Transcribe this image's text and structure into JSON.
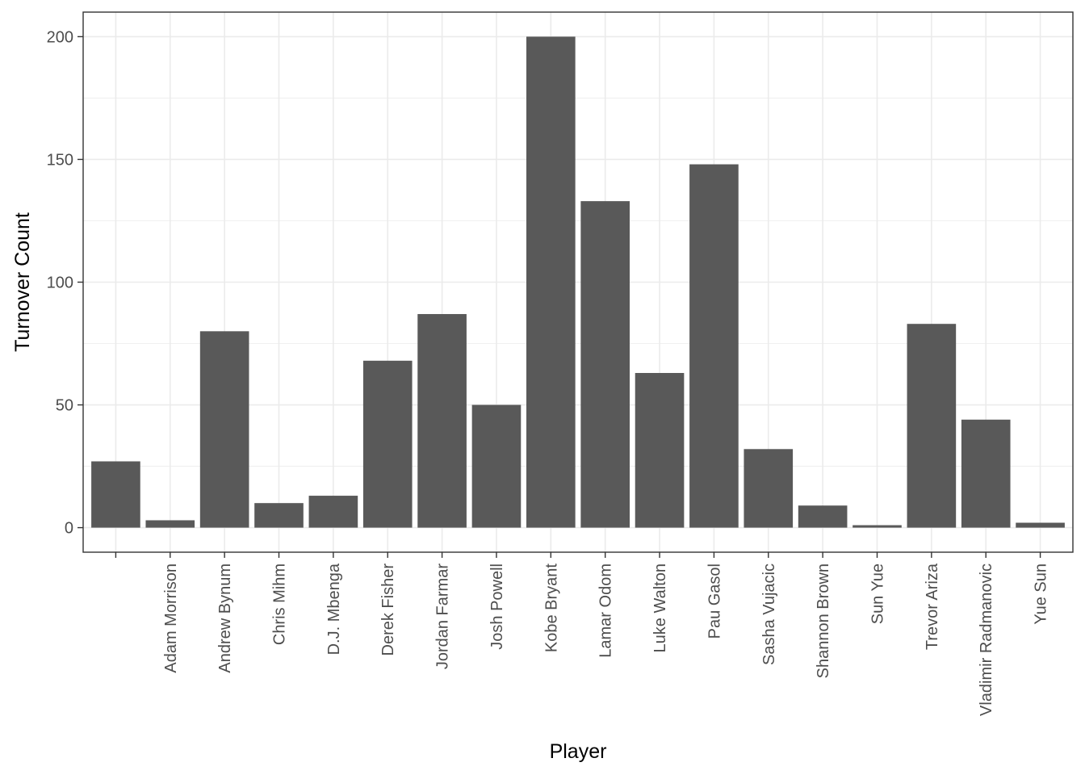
{
  "chart_data": {
    "type": "bar",
    "title": "",
    "xlabel": "Player",
    "ylabel": "Turnover Count",
    "categories": [
      "",
      "Adam Morrison",
      "Andrew Bynum",
      "Chris Mihm",
      "D.J. Mbenga",
      "Derek Fisher",
      "Jordan Farmar",
      "Josh Powell",
      "Kobe Bryant",
      "Lamar Odom",
      "Luke Walton",
      "Pau Gasol",
      "Sasha Vujacic",
      "Shannon Brown",
      "Sun Yue",
      "Trevor Ariza",
      "Vladimir Radmanovic",
      "Yue Sun"
    ],
    "values": [
      27,
      3,
      80,
      10,
      13,
      68,
      87,
      50,
      200,
      133,
      63,
      148,
      32,
      9,
      1,
      83,
      44,
      2
    ],
    "ylim": [
      -10,
      210
    ],
    "yticks": [
      0,
      50,
      100,
      150,
      200
    ],
    "y_tick_labels": [
      "0",
      "50",
      "100",
      "150",
      "200"
    ],
    "grid": true,
    "legend": "none",
    "colors": {
      "bar": "#595959",
      "grid": "#ebebeb",
      "panel_border": "#333333",
      "background": "#ffffff"
    }
  }
}
